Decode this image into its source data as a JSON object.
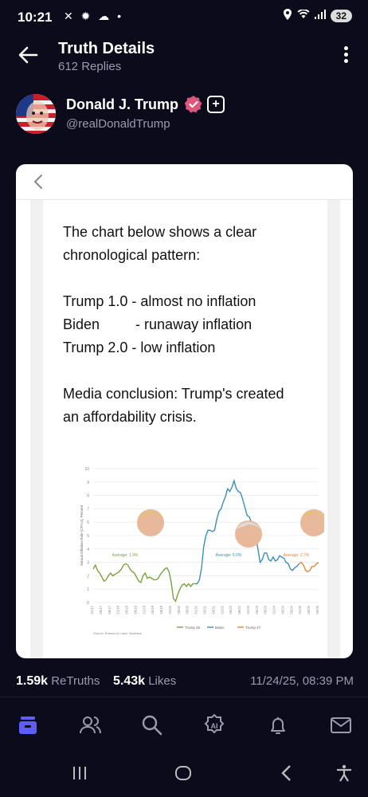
{
  "status": {
    "time": "10:21",
    "battery": "32"
  },
  "header": {
    "title": "Truth Details",
    "subtitle": "612 Replies"
  },
  "author": {
    "name": "Donald J. Trump",
    "handle": "@realDonaldTrump"
  },
  "post": {
    "lines": [
      "The chart below shows a clear",
      "chronological pattern:",
      "",
      "Trump 1.0 - almost no inflation",
      "Biden         - runaway inflation",
      "Trump 2.0 - low inflation",
      "",
      "Media conclusion: Trump's created",
      "an affordability crisis."
    ]
  },
  "chart_data": {
    "type": "line",
    "ylabel": "Annual Inflation Rate (CPI-U), Percent",
    "ylim": [
      0,
      10
    ],
    "yticks": [
      0,
      1,
      2,
      3,
      4,
      5,
      6,
      7,
      8,
      9,
      10
    ],
    "x_months_labels": [
      "01/17",
      "05/17",
      "09/17",
      "01/18",
      "05/18",
      "09/18",
      "01/19",
      "05/19",
      "09/19",
      "01/20",
      "05/20",
      "09/20",
      "01/21",
      "05/21",
      "09/21",
      "01/22",
      "05/22",
      "09/22",
      "01/23",
      "05/23",
      "09/23",
      "01/24",
      "05/24",
      "09/24",
      "01/25",
      "05/25",
      "09/25"
    ],
    "series": [
      {
        "name": "Trump 45",
        "color": "#7aa33a",
        "values": [
          2.5,
          2.8,
          2.4,
          2.2,
          1.9,
          1.6,
          1.7,
          2.0,
          2.2,
          2.0,
          2.1,
          2.2,
          2.3,
          2.5,
          2.8,
          2.9,
          2.8,
          2.5,
          2.3,
          2.2,
          1.9,
          1.6,
          1.5,
          2.0,
          2.2,
          1.8,
          1.9,
          1.8,
          1.7,
          1.7,
          1.8,
          2.1,
          2.3,
          2.5,
          2.6,
          2.3,
          1.5,
          0.3,
          0.1,
          0.6,
          1.0,
          1.3,
          1.4,
          1.2,
          1.4,
          1.2,
          1.4,
          1.4
        ]
      },
      {
        "name": "Biden",
        "color": "#3a8fb7",
        "values": [
          1.4,
          1.7,
          2.6,
          4.2,
          5.0,
          5.4,
          5.4,
          5.3,
          5.4,
          6.2,
          6.8,
          7.0,
          7.5,
          7.9,
          8.5,
          8.3,
          8.6,
          9.1,
          8.5,
          8.3,
          8.2,
          7.7,
          7.1,
          6.5,
          6.4,
          6.0,
          5.0,
          4.9,
          4.0,
          3.0,
          3.2,
          3.7,
          3.7,
          3.2,
          3.1,
          3.4,
          3.1,
          3.2,
          3.5,
          3.4,
          3.3,
          3.0,
          2.9,
          2.5,
          2.4,
          2.6,
          2.7,
          2.9
        ]
      },
      {
        "name": "Trump 47",
        "color": "#e98633",
        "values": [
          3.0,
          2.8,
          2.4,
          2.3,
          2.4,
          2.7,
          2.7,
          2.9,
          3.0
        ]
      }
    ],
    "annotations": [
      "Average: 1.9%",
      "Average: 5.0%",
      "Average: 2.7%"
    ],
    "source": "Source: Bureau of Labor Statistics"
  },
  "stats": {
    "retruths_count": "1.59k",
    "retruths_label": "ReTruths",
    "likes_count": "5.43k",
    "likes_label": "Likes",
    "timestamp": "11/24/25, 08:39 PM"
  },
  "colors": {
    "background": "#0c0b1c",
    "active_tab": "#5b5ef7",
    "muted": "#9b9aae"
  },
  "tabs": [
    "home-icon",
    "people-icon",
    "search-icon",
    "ai-icon",
    "bell-icon",
    "mail-icon"
  ]
}
